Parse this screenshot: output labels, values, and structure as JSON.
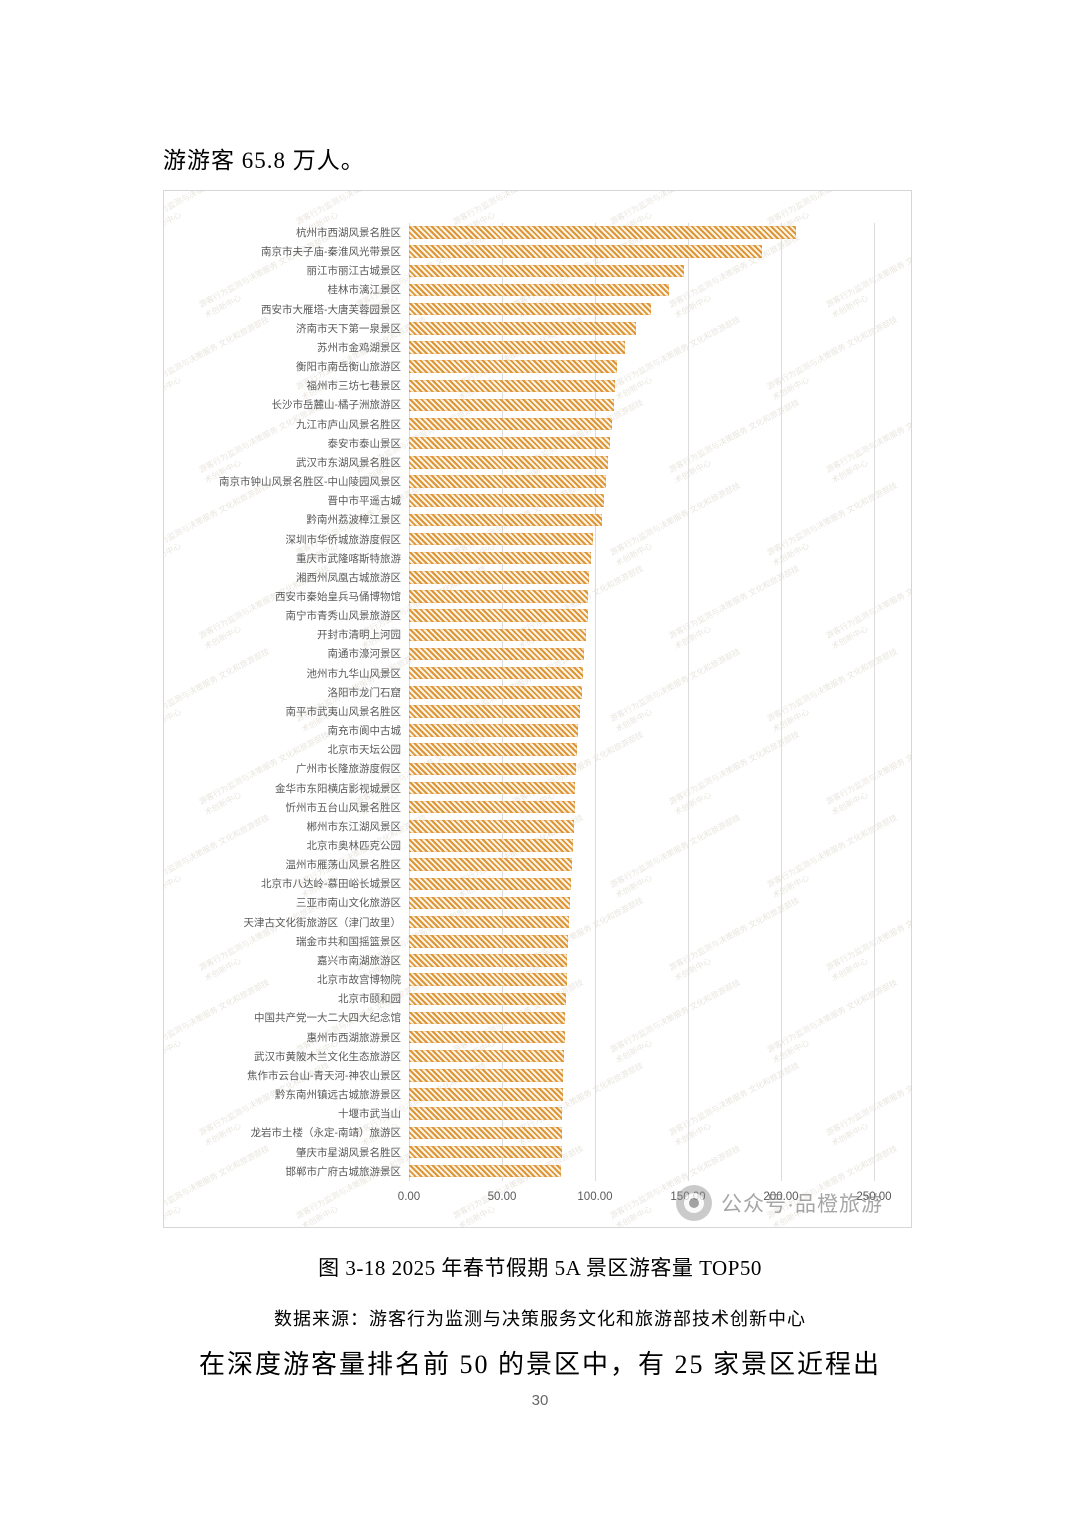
{
  "page": {
    "top_paragraph": "游游客 65.8 万人。",
    "figure_caption": "图 3-18 2025 年春节假期 5A 景区游客量 TOP50",
    "data_source": "数据来源：游客行为监测与决策服务文化和旅游部技术创新中心",
    "bottom_paragraph": "在深度游客量排名前 50 的景区中，有 25 家景区近程出",
    "page_number": "30"
  },
  "watermark": {
    "tile_text": "游客行为监测与决策服务 文化和旅游部技术创新中心",
    "badge_text": "公众号·品橙旅游",
    "badge_icon": "camera-logo"
  },
  "chart_data": {
    "type": "bar",
    "orientation": "horizontal",
    "title": "2025年春节假期5A景区游客量TOP50",
    "unit": "万人",
    "xlabel": "",
    "ylabel": "",
    "xlim": [
      0,
      250
    ],
    "x_ticks": [
      "0.00",
      "50.00",
      "100.00",
      "150.00",
      "200.00",
      "250.00"
    ],
    "grid": true,
    "legend": false,
    "bar_color": "#DD9637",
    "bar_pattern": "diagonal-hatch",
    "categories": [
      "杭州市西湖风景名胜区",
      "南京市夫子庙-秦淮风光带景区",
      "丽江市丽江古城景区",
      "桂林市漓江景区",
      "西安市大雁塔-大唐芙蓉园景区",
      "济南市天下第一泉景区",
      "苏州市金鸡湖景区",
      "衡阳市南岳衡山旅游区",
      "福州市三坊七巷景区",
      "长沙市岳麓山-橘子洲旅游区",
      "九江市庐山风景名胜区",
      "泰安市泰山景区",
      "武汉市东湖风景名胜区",
      "南京市钟山风景名胜区-中山陵园风景区",
      "晋中市平遥古城",
      "黔南州荔波樟江景区",
      "深圳市华侨城旅游度假区",
      "重庆市武隆喀斯特旅游",
      "湘西州凤凰古城旅游区",
      "西安市秦始皇兵马俑博物馆",
      "南宁市青秀山风景旅游区",
      "开封市清明上河园",
      "南通市濠河景区",
      "池州市九华山风景区",
      "洛阳市龙门石窟",
      "南平市武夷山风景名胜区",
      "南充市阆中古城",
      "北京市天坛公园",
      "广州市长隆旅游度假区",
      "金华市东阳横店影视城景区",
      "忻州市五台山风景名胜区",
      "郴州市东江湖风景区",
      "北京市奥林匹克公园",
      "温州市雁荡山风景名胜区",
      "北京市八达岭-慕田峪长城景区",
      "三亚市南山文化旅游区",
      "天津古文化街旅游区（津门故里）",
      "瑞金市共和国摇篮景区",
      "嘉兴市南湖旅游区",
      "北京市故宫博物院",
      "北京市颐和园",
      "中国共产党一大二大四大纪念馆",
      "惠州市西湖旅游景区",
      "武汉市黄陂木兰文化生态旅游区",
      "焦作市云台山-青天河-神农山景区",
      "黔东南州镇远古城旅游景区",
      "十堰市武当山",
      "龙岩市土楼（永定-南靖）旅游区",
      "肇庆市星湖风景名胜区",
      "邯郸市广府古城旅游景区"
    ],
    "values": [
      208,
      190,
      148,
      140,
      130,
      122,
      116,
      112,
      111,
      110,
      109,
      108,
      107,
      106,
      105,
      104,
      99,
      98,
      97,
      96.5,
      96,
      95,
      94,
      93.5,
      93,
      92,
      91,
      90.5,
      90,
      89.5,
      89,
      88.5,
      88,
      87.5,
      87,
      86.5,
      86,
      85.5,
      85,
      85,
      84.5,
      84,
      84,
      83.5,
      83,
      83,
      82.5,
      82,
      82,
      81.5
    ]
  }
}
